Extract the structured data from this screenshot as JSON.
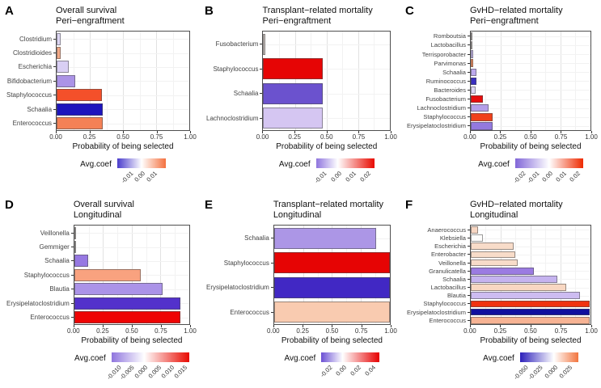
{
  "figure": {
    "background": "#ffffff",
    "x_tick_labels": [
      "0.00",
      "0.25",
      "0.50",
      "0.75",
      "1.00"
    ]
  },
  "chart_data": [
    {
      "type": "bar",
      "panel_label": "A",
      "title": [
        "Overall survival",
        "Peri−engraftment"
      ],
      "xlabel": "Probability of being selected",
      "xlim": [
        0,
        1
      ],
      "x_ticks": [
        "0.00",
        "0.25",
        "0.50",
        "0.75",
        "1.00"
      ],
      "grid": true,
      "legend_position": "bottom",
      "categories": [
        {
          "label": "Clostridium",
          "value": 0.03,
          "color": "#dcd6f3"
        },
        {
          "label": "Clostridioides",
          "value": 0.03,
          "color": "#f2a987"
        },
        {
          "label": "Escherichia",
          "value": 0.09,
          "color": "#d9cff4"
        },
        {
          "label": "Bifidobacterium",
          "value": 0.14,
          "color": "#ab93e6"
        },
        {
          "label": "Staphylococcus",
          "value": 0.34,
          "color": "#f4502a"
        },
        {
          "label": "Schaalia",
          "value": 0.35,
          "color": "#1d15bd"
        },
        {
          "label": "Enterococcus",
          "value": 0.35,
          "color": "#f48156"
        }
      ],
      "legend": {
        "label": "Avg.coef",
        "gradient": {
          "left": "#4a3ccc",
          "white_pos": 50,
          "right": "#f4713f"
        },
        "ticks": [
          {
            "text": "-0.01",
            "pos": 25
          },
          {
            "text": "0.00",
            "pos": 50
          },
          {
            "text": "0.01",
            "pos": 75
          }
        ]
      }
    },
    {
      "type": "bar",
      "panel_label": "B",
      "title": [
        "Transplant−related mortality",
        "Peri−engraftment"
      ],
      "xlabel": "Probability of being selected",
      "xlim": [
        0,
        1
      ],
      "x_ticks": [
        "0.00",
        "0.25",
        "0.50",
        "0.75",
        "1.00"
      ],
      "grid": true,
      "legend_position": "bottom",
      "categories": [
        {
          "label": "Fusobacterium",
          "value": 0.015,
          "color": "#c9c2be"
        },
        {
          "label": "Staphylococcus",
          "value": 0.47,
          "color": "#e60505"
        },
        {
          "label": "Schaalia",
          "value": 0.47,
          "color": "#6b52ce"
        },
        {
          "label": "Lachnoclostridium",
          "value": 0.47,
          "color": "#d5c6f2"
        }
      ],
      "legend": {
        "label": "Avg.coef",
        "gradient": {
          "left": "#8f75de",
          "white_pos": 37,
          "right": "#e80a00"
        },
        "ticks": [
          {
            "text": "-0.01",
            "pos": 12
          },
          {
            "text": "0.00",
            "pos": 37
          },
          {
            "text": "0.01",
            "pos": 62
          },
          {
            "text": "0.02",
            "pos": 87
          }
        ]
      }
    },
    {
      "type": "bar",
      "panel_label": "C",
      "title": [
        "GvHD−related mortality",
        "Peri−engraftment"
      ],
      "xlabel": "Probability of being selected",
      "xlim": [
        0,
        1
      ],
      "x_ticks": [
        "0.00",
        "0.25",
        "0.50",
        "0.75",
        "1.00"
      ],
      "grid": true,
      "legend_position": "bottom",
      "categories": [
        {
          "label": "Romboutsia",
          "value": 0.006,
          "color": "#cac4c1"
        },
        {
          "label": "Lactobacillus",
          "value": 0.01,
          "color": "#cac4c1"
        },
        {
          "label": "Terrisporobacter",
          "value": 0.02,
          "color": "#c2b4e8"
        },
        {
          "label": "Parvimonas",
          "value": 0.02,
          "color": "#ee8a5a"
        },
        {
          "label": "Schaalia",
          "value": 0.05,
          "color": "#bca9ec"
        },
        {
          "label": "Ruminococcus",
          "value": 0.05,
          "color": "#392ec1"
        },
        {
          "label": "Bacteroides",
          "value": 0.04,
          "color": "#ded6f4"
        },
        {
          "label": "Fusobacterium",
          "value": 0.1,
          "color": "#e60d0d"
        },
        {
          "label": "Lachnoclostridium",
          "value": 0.15,
          "color": "#b49fe9"
        },
        {
          "label": "Staphylococcus",
          "value": 0.18,
          "color": "#f0411b"
        },
        {
          "label": "Erysipelatoclostridium",
          "value": 0.18,
          "color": "#9379de"
        }
      ],
      "legend": {
        "label": "Avg.coef",
        "gradient": {
          "left": "#8166d8",
          "white_pos": 50,
          "right": "#ee2a00"
        },
        "ticks": [
          {
            "text": "-0.02",
            "pos": 10
          },
          {
            "text": "-0.01",
            "pos": 30
          },
          {
            "text": "0.00",
            "pos": 50
          },
          {
            "text": "0.01",
            "pos": 70
          },
          {
            "text": "0.02",
            "pos": 90
          }
        ]
      }
    },
    {
      "type": "bar",
      "panel_label": "D",
      "title": [
        "Overall survival",
        "Longitudinal"
      ],
      "xlabel": "Probability of being selected",
      "xlim": [
        0,
        1
      ],
      "x_ticks": [
        "0.00",
        "0.25",
        "0.50",
        "0.75",
        "1.00"
      ],
      "grid": true,
      "legend_position": "bottom",
      "categories": [
        {
          "label": "Veillonella",
          "value": 0.01,
          "color": "#c6c1be"
        },
        {
          "label": "Gemmiger",
          "value": 0.01,
          "color": "#c6c1be"
        },
        {
          "label": "Schaalia",
          "value": 0.12,
          "color": "#9678e2"
        },
        {
          "label": "Staphylococcus",
          "value": 0.58,
          "color": "#f9a27f"
        },
        {
          "label": "Blautia",
          "value": 0.77,
          "color": "#ab93e8"
        },
        {
          "label": "Erysipelatoclostridium",
          "value": 0.92,
          "color": "#5331cb"
        },
        {
          "label": "Enterococcus",
          "value": 0.92,
          "color": "#ee0404"
        }
      ],
      "legend": {
        "label": "Avg.coef",
        "gradient": {
          "left": "#8f75de",
          "white_pos": 42,
          "right": "#e80a00"
        },
        "ticks": [
          {
            "text": "-0.010",
            "pos": 8
          },
          {
            "text": "-0.005",
            "pos": 25
          },
          {
            "text": "0.000",
            "pos": 42
          },
          {
            "text": "0.005",
            "pos": 59
          },
          {
            "text": "0.010",
            "pos": 76
          },
          {
            "text": "0.015",
            "pos": 93
          }
        ]
      }
    },
    {
      "type": "bar",
      "panel_label": "E",
      "title": [
        "Transplant−related mortality",
        "Longitudinal"
      ],
      "xlabel": "Probability of being selected",
      "xlim": [
        0,
        1
      ],
      "x_ticks": [
        "0.00",
        "0.25",
        "0.50",
        "0.75",
        "1.00"
      ],
      "grid": true,
      "legend_position": "bottom",
      "categories": [
        {
          "label": "Schaalia",
          "value": 0.88,
          "color": "#ac96e6"
        },
        {
          "label": "Staphylococcus",
          "value": 1.0,
          "color": "#e60404"
        },
        {
          "label": "Erysipelatoclostridium",
          "value": 1.0,
          "color": "#4128c4"
        },
        {
          "label": "Enterococcus",
          "value": 1.0,
          "color": "#f9cbb0"
        }
      ],
      "legend": {
        "label": "Avg.coef",
        "gradient": {
          "left": "#6b50d4",
          "white_pos": 37,
          "right": "#e60000"
        },
        "ticks": [
          {
            "text": "-0.02",
            "pos": 12
          },
          {
            "text": "0.00",
            "pos": 37
          },
          {
            "text": "0.02",
            "pos": 62
          },
          {
            "text": "0.04",
            "pos": 87
          }
        ]
      }
    },
    {
      "type": "bar",
      "panel_label": "F",
      "title": [
        "GvHD−related mortality",
        "Longitudinal"
      ],
      "xlabel": "Probability of being selected",
      "xlim": [
        0,
        1
      ],
      "x_ticks": [
        "0.00",
        "0.25",
        "0.50",
        "0.75",
        "1.00"
      ],
      "grid": true,
      "legend_position": "bottom",
      "categories": [
        {
          "label": "Anaerococcus",
          "value": 0.06,
          "color": "#f7d6c2"
        },
        {
          "label": "Klebsiella",
          "value": 0.1,
          "color": "#fdfcfb"
        },
        {
          "label": "Escherichia",
          "value": 0.36,
          "color": "#f8dcc9"
        },
        {
          "label": "Enterobacter",
          "value": 0.37,
          "color": "#f8dcc9"
        },
        {
          "label": "Veillonella",
          "value": 0.39,
          "color": "#f8dcc9"
        },
        {
          "label": "Granulicatella",
          "value": 0.53,
          "color": "#9b7be2"
        },
        {
          "label": "Schaalia",
          "value": 0.72,
          "color": "#c5b3ef"
        },
        {
          "label": "Lactobacillus",
          "value": 0.8,
          "color": "#f8d7c2"
        },
        {
          "label": "Blautia",
          "value": 0.91,
          "color": "#cdbcf1"
        },
        {
          "label": "Staphylococcus",
          "value": 0.99,
          "color": "#f03210"
        },
        {
          "label": "Erysipelatoclostridium",
          "value": 0.99,
          "color": "#10109e"
        },
        {
          "label": "Enterococcus",
          "value": 0.99,
          "color": "#f7b394"
        }
      ],
      "legend": {
        "label": "Avg.coef",
        "gradient": {
          "left": "#2d20bb",
          "white_pos": 58,
          "right": "#f2753f"
        },
        "ticks": [
          {
            "text": "-0.050",
            "pos": 8
          },
          {
            "text": "-0.025",
            "pos": 33
          },
          {
            "text": "0.000",
            "pos": 58
          },
          {
            "text": "0.025",
            "pos": 83
          }
        ]
      }
    }
  ]
}
